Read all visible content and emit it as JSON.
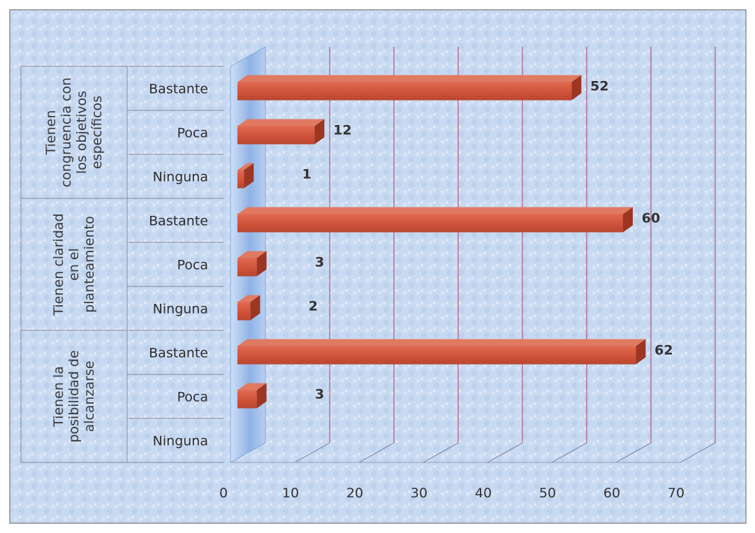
{
  "chart_data": {
    "type": "bar",
    "orientation": "horizontal",
    "groups": [
      {
        "label": "Tienen congruencia con los objetivos específicos",
        "label_lines": [
          "Tienen",
          "congruencia con",
          "los objetivos",
          "específicos"
        ],
        "categories": [
          "Bastante",
          "Poca",
          "Ninguna"
        ],
        "values": [
          52,
          12,
          1
        ]
      },
      {
        "label": "Tienen claridad en el planteamiento",
        "label_lines": [
          "Tienen claridad",
          "en el",
          "planteamiento"
        ],
        "categories": [
          "Bastante",
          "Poca",
          "Ninguna"
        ],
        "values": [
          60,
          3,
          2
        ]
      },
      {
        "label": "Tienen la posibilidad de alcanzarse",
        "label_lines": [
          "Tienen la",
          "posibilidad de",
          "alcanzarse"
        ],
        "categories": [
          "Bastante",
          "Poca",
          "Ninguna"
        ],
        "values": [
          62,
          3,
          0
        ]
      }
    ],
    "value_labels": [
      "52",
      "12",
      "1",
      "60",
      "3",
      "2",
      "62",
      "3",
      ""
    ],
    "xlim": [
      0,
      70
    ],
    "xticks": [
      0,
      10,
      20,
      30,
      40,
      50,
      60,
      70
    ],
    "title": "",
    "xlabel": "",
    "ylabel": "",
    "grid": true,
    "legend": "none",
    "colors": {
      "bar_front": "#d2543c",
      "bar_top": "#e07a62",
      "bar_side": "#9c3622",
      "gridline": "#b05a78",
      "wall_left": "#7fa6e0",
      "background": "#c9daf3"
    }
  }
}
